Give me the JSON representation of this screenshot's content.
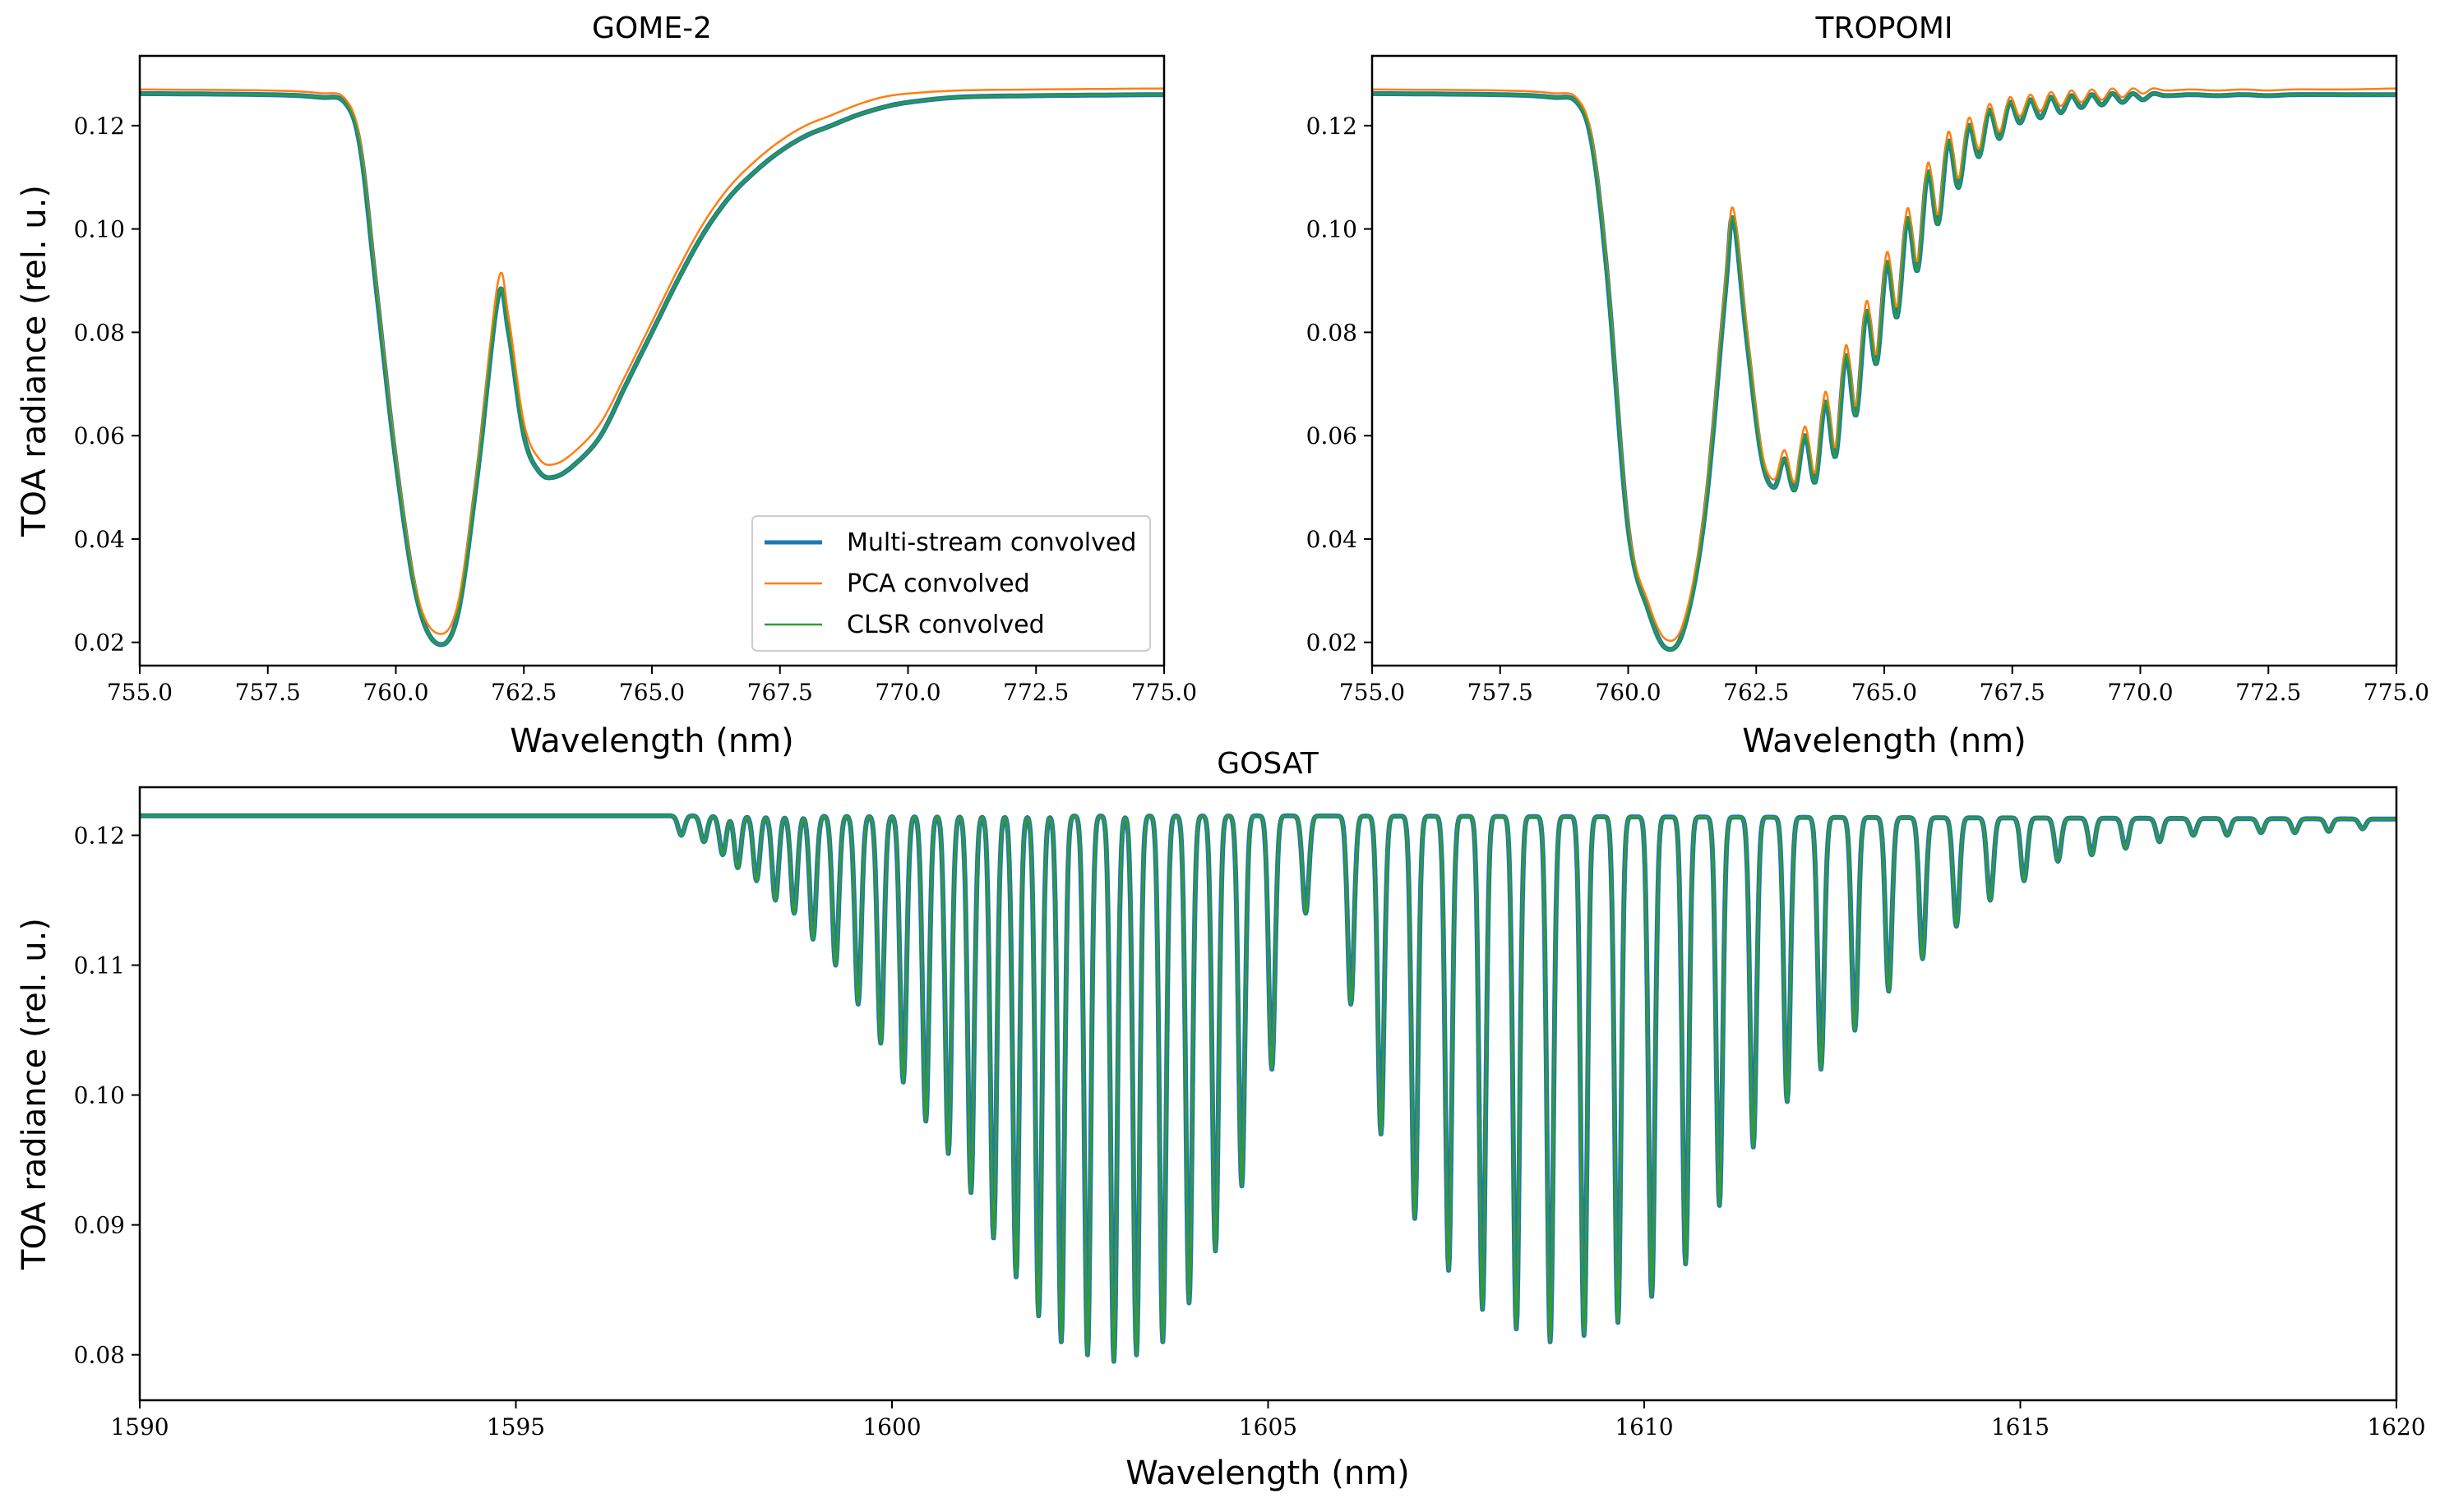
{
  "figure": {
    "legend": {
      "entries": [
        "Multi-stream convolved",
        "PCA convolved",
        "CLSR convolved"
      ],
      "placement": "lower-right of GOME-2 panel"
    },
    "series_colors": [
      "#1f77b4",
      "#ff7f0e",
      "#2ca02c"
    ]
  },
  "chart_data": [
    {
      "type": "line",
      "title": "GOME-2",
      "xlabel": "Wavelength (nm)",
      "ylabel": "TOA radiance (rel. u.)",
      "xlim": [
        755.0,
        775.0
      ],
      "ylim": [
        0.0155,
        0.1335
      ],
      "x_ticks": [
        755.0,
        757.5,
        760.0,
        762.5,
        765.0,
        767.5,
        770.0,
        772.5,
        775.0
      ],
      "x_tick_labels": [
        "755.0",
        "757.5",
        "760.0",
        "762.5",
        "765.0",
        "767.5",
        "770.0",
        "772.5",
        "775.0"
      ],
      "y_ticks": [
        0.02,
        0.04,
        0.06,
        0.08,
        0.1,
        0.12
      ],
      "y_tick_labels": [
        "0.02",
        "0.04",
        "0.06",
        "0.08",
        "0.10",
        "0.12"
      ],
      "x": [
        755.0,
        757.5,
        758.5,
        759.0,
        759.3,
        759.6,
        760.0,
        760.4,
        760.8,
        761.2,
        761.6,
        762.0,
        762.2,
        762.5,
        762.8,
        763.1,
        763.5,
        764.0,
        764.5,
        765.0,
        765.5,
        766.0,
        766.5,
        767.0,
        767.5,
        768.0,
        768.5,
        769.0,
        769.5,
        770.0,
        771.0,
        772.5,
        775.0
      ],
      "series": [
        {
          "name": "Multi-stream convolved",
          "values": [
            0.1262,
            0.126,
            0.1255,
            0.1245,
            0.116,
            0.09,
            0.055,
            0.029,
            0.0198,
            0.025,
            0.053,
            0.087,
            0.08,
            0.06,
            0.053,
            0.052,
            0.0545,
            0.06,
            0.07,
            0.08,
            0.09,
            0.099,
            0.106,
            0.111,
            0.115,
            0.118,
            0.12,
            0.122,
            0.1235,
            0.1245,
            0.1255,
            0.1258,
            0.126
          ]
        },
        {
          "name": "PCA convolved",
          "values": [
            0.127,
            0.1268,
            0.1263,
            0.1253,
            0.117,
            0.091,
            0.056,
            0.03,
            0.0218,
            0.027,
            0.0545,
            0.09,
            0.083,
            0.0625,
            0.0555,
            0.0545,
            0.057,
            0.0625,
            0.072,
            0.082,
            0.092,
            0.101,
            0.108,
            0.113,
            0.117,
            0.12,
            0.122,
            0.124,
            0.1255,
            0.1262,
            0.1268,
            0.127,
            0.1272
          ]
        },
        {
          "name": "CLSR convolved",
          "values": [
            0.1262,
            0.126,
            0.1255,
            0.1245,
            0.116,
            0.09,
            0.055,
            0.029,
            0.0198,
            0.025,
            0.053,
            0.087,
            0.08,
            0.06,
            0.053,
            0.052,
            0.0545,
            0.06,
            0.07,
            0.08,
            0.09,
            0.099,
            0.106,
            0.111,
            0.115,
            0.118,
            0.12,
            0.122,
            0.1235,
            0.1245,
            0.1255,
            0.1258,
            0.126
          ]
        }
      ]
    },
    {
      "type": "line",
      "title": "TROPOMI",
      "xlabel": "Wavelength (nm)",
      "ylabel": "",
      "xlim": [
        755.0,
        775.0
      ],
      "ylim": [
        0.0155,
        0.1335
      ],
      "x_ticks": [
        755.0,
        757.5,
        760.0,
        762.5,
        765.0,
        767.5,
        770.0,
        772.5,
        775.0
      ],
      "x_tick_labels": [
        "755.0",
        "757.5",
        "760.0",
        "762.5",
        "765.0",
        "767.5",
        "770.0",
        "772.5",
        "775.0"
      ],
      "y_ticks": [
        0.02,
        0.04,
        0.06,
        0.08,
        0.1,
        0.12
      ],
      "y_tick_labels": [
        "0.02",
        "0.04",
        "0.06",
        "0.08",
        "0.10",
        "0.12"
      ],
      "x": [
        755.0,
        757.5,
        758.5,
        759.0,
        759.3,
        759.6,
        760.0,
        760.4,
        760.75,
        761.1,
        761.5,
        761.9,
        762.05,
        762.3,
        762.6,
        762.85,
        763.05,
        763.25,
        763.45,
        763.65,
        763.85,
        764.05,
        764.25,
        764.45,
        764.65,
        764.85,
        765.05,
        765.25,
        765.45,
        765.65,
        765.85,
        766.05,
        766.25,
        766.45,
        766.65,
        766.85,
        767.05,
        767.25,
        767.45,
        767.65,
        767.85,
        768.05,
        768.25,
        768.45,
        768.65,
        768.85,
        769.05,
        769.25,
        769.45,
        769.65,
        769.85,
        770.05,
        770.25,
        770.5,
        771.0,
        771.5,
        772.0,
        772.5,
        773.0,
        774.0,
        775.0
      ],
      "series": [
        {
          "name": "Multi-stream convolved",
          "values": [
            0.1262,
            0.126,
            0.1255,
            0.1245,
            0.116,
            0.09,
            0.042,
            0.026,
            0.0188,
            0.023,
            0.045,
            0.088,
            0.102,
            0.08,
            0.056,
            0.05,
            0.0555,
            0.0495,
            0.06,
            0.051,
            0.0665,
            0.056,
            0.0755,
            0.064,
            0.084,
            0.074,
            0.0935,
            0.083,
            0.102,
            0.092,
            0.111,
            0.101,
            0.117,
            0.108,
            0.12,
            0.114,
            0.123,
            0.1175,
            0.1245,
            0.1205,
            0.125,
            0.1215,
            0.1255,
            0.1225,
            0.1258,
            0.1235,
            0.126,
            0.124,
            0.1262,
            0.1245,
            0.1262,
            0.125,
            0.1262,
            0.1258,
            0.126,
            0.1258,
            0.126,
            0.1258,
            0.126,
            0.126,
            0.126
          ]
        },
        {
          "name": "PCA convolved",
          "values": [
            0.127,
            0.1268,
            0.1263,
            0.1253,
            0.117,
            0.091,
            0.043,
            0.0275,
            0.0205,
            0.0245,
            0.0465,
            0.09,
            0.104,
            0.082,
            0.0575,
            0.0515,
            0.0572,
            0.051,
            0.0618,
            0.0528,
            0.0685,
            0.0578,
            0.0775,
            0.0658,
            0.086,
            0.0758,
            0.0955,
            0.085,
            0.104,
            0.0938,
            0.1128,
            0.1028,
            0.1188,
            0.1098,
            0.1215,
            0.1155,
            0.1242,
            0.1188,
            0.1255,
            0.1218,
            0.126,
            0.1228,
            0.1265,
            0.1238,
            0.1268,
            0.1245,
            0.127,
            0.125,
            0.1272,
            0.1255,
            0.1272,
            0.1262,
            0.1272,
            0.1268,
            0.127,
            0.1268,
            0.127,
            0.1268,
            0.127,
            0.127,
            0.1272
          ]
        },
        {
          "name": "CLSR convolved",
          "values": [
            0.1262,
            0.126,
            0.1255,
            0.1245,
            0.116,
            0.09,
            0.042,
            0.026,
            0.0188,
            0.023,
            0.045,
            0.088,
            0.102,
            0.08,
            0.056,
            0.05,
            0.0555,
            0.0495,
            0.06,
            0.051,
            0.0665,
            0.056,
            0.0755,
            0.064,
            0.084,
            0.074,
            0.0935,
            0.083,
            0.102,
            0.092,
            0.111,
            0.101,
            0.117,
            0.108,
            0.12,
            0.114,
            0.123,
            0.1175,
            0.1245,
            0.1205,
            0.125,
            0.1215,
            0.1255,
            0.1225,
            0.1258,
            0.1235,
            0.126,
            0.124,
            0.1262,
            0.1245,
            0.1262,
            0.125,
            0.1262,
            0.1258,
            0.126,
            0.1258,
            0.126,
            0.1258,
            0.126,
            0.126,
            0.126
          ]
        }
      ]
    },
    {
      "type": "line",
      "title": "GOSAT",
      "xlabel": "Wavelength (nm)",
      "ylabel": "TOA radiance (rel. u.)",
      "xlim": [
        1590,
        1620
      ],
      "ylim": [
        0.0765,
        0.1237
      ],
      "x_ticks": [
        1590,
        1595,
        1600,
        1605,
        1610,
        1615,
        1620
      ],
      "x_tick_labels": [
        "1590",
        "1595",
        "1600",
        "1605",
        "1610",
        "1615",
        "1620"
      ],
      "y_ticks": [
        0.08,
        0.09,
        0.1,
        0.11,
        0.12
      ],
      "y_tick_labels": [
        "0.08",
        "0.09",
        "0.10",
        "0.11",
        "0.12"
      ],
      "baseline": 0.1215,
      "baseline_right": 0.121,
      "line_width_nm": 0.06,
      "absorption_lines": [
        {
          "x": 1597.2,
          "min": 0.12
        },
        {
          "x": 1597.5,
          "min": 0.1195
        },
        {
          "x": 1597.75,
          "min": 0.1185
        },
        {
          "x": 1597.95,
          "min": 0.1175
        },
        {
          "x": 1598.2,
          "min": 0.1165
        },
        {
          "x": 1598.45,
          "min": 0.115
        },
        {
          "x": 1598.7,
          "min": 0.114
        },
        {
          "x": 1598.95,
          "min": 0.112
        },
        {
          "x": 1599.25,
          "min": 0.11
        },
        {
          "x": 1599.55,
          "min": 0.107
        },
        {
          "x": 1599.85,
          "min": 0.104
        },
        {
          "x": 1600.15,
          "min": 0.101
        },
        {
          "x": 1600.45,
          "min": 0.098
        },
        {
          "x": 1600.75,
          "min": 0.0955
        },
        {
          "x": 1601.05,
          "min": 0.0925
        },
        {
          "x": 1601.35,
          "min": 0.089
        },
        {
          "x": 1601.65,
          "min": 0.086
        },
        {
          "x": 1601.95,
          "min": 0.083
        },
        {
          "x": 1602.25,
          "min": 0.081
        },
        {
          "x": 1602.6,
          "min": 0.08
        },
        {
          "x": 1602.95,
          "min": 0.0795
        },
        {
          "x": 1603.25,
          "min": 0.08
        },
        {
          "x": 1603.6,
          "min": 0.081
        },
        {
          "x": 1603.95,
          "min": 0.084
        },
        {
          "x": 1604.3,
          "min": 0.088
        },
        {
          "x": 1604.65,
          "min": 0.093
        },
        {
          "x": 1605.05,
          "min": 0.102
        },
        {
          "x": 1605.5,
          "min": 0.114
        },
        {
          "x": 1606.1,
          "min": 0.107
        },
        {
          "x": 1606.5,
          "min": 0.097
        },
        {
          "x": 1606.95,
          "min": 0.0905
        },
        {
          "x": 1607.4,
          "min": 0.0865
        },
        {
          "x": 1607.85,
          "min": 0.0835
        },
        {
          "x": 1608.3,
          "min": 0.082
        },
        {
          "x": 1608.75,
          "min": 0.081
        },
        {
          "x": 1609.2,
          "min": 0.0815
        },
        {
          "x": 1609.65,
          "min": 0.0825
        },
        {
          "x": 1610.1,
          "min": 0.0845
        },
        {
          "x": 1610.55,
          "min": 0.087
        },
        {
          "x": 1611.0,
          "min": 0.0915
        },
        {
          "x": 1611.45,
          "min": 0.096
        },
        {
          "x": 1611.9,
          "min": 0.0995
        },
        {
          "x": 1612.35,
          "min": 0.102
        },
        {
          "x": 1612.8,
          "min": 0.105
        },
        {
          "x": 1613.25,
          "min": 0.108
        },
        {
          "x": 1613.7,
          "min": 0.1105
        },
        {
          "x": 1614.15,
          "min": 0.113
        },
        {
          "x": 1614.6,
          "min": 0.115
        },
        {
          "x": 1615.05,
          "min": 0.1165
        },
        {
          "x": 1615.5,
          "min": 0.118
        },
        {
          "x": 1615.95,
          "min": 0.1185
        },
        {
          "x": 1616.4,
          "min": 0.119
        },
        {
          "x": 1616.85,
          "min": 0.1195
        },
        {
          "x": 1617.3,
          "min": 0.12
        },
        {
          "x": 1617.75,
          "min": 0.12
        },
        {
          "x": 1618.2,
          "min": 0.1202
        },
        {
          "x": 1618.65,
          "min": 0.1202
        },
        {
          "x": 1619.1,
          "min": 0.1203
        },
        {
          "x": 1619.55,
          "min": 0.1205
        }
      ],
      "series": [
        {
          "name": "Multi-stream convolved"
        },
        {
          "name": "PCA convolved"
        },
        {
          "name": "CLSR convolved"
        }
      ]
    }
  ]
}
